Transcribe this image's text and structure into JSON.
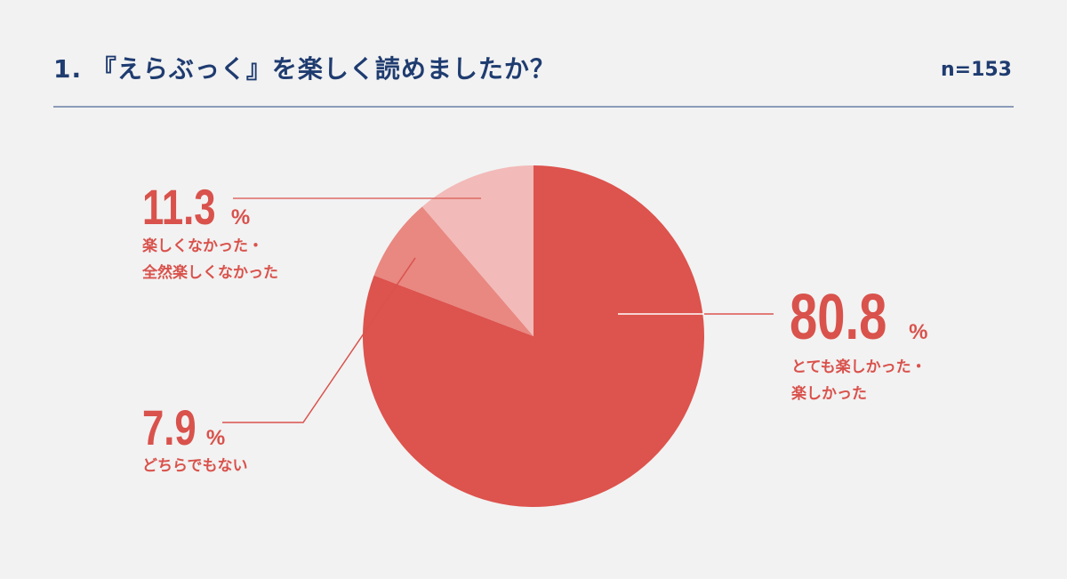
{
  "header": {
    "title": "1. 『えらぶっく』を楽しく読めましたか？",
    "sample_size": "n=153"
  },
  "colors": {
    "accent": "#d9524c",
    "slice_enjoyed": "#dd534d",
    "slice_neutral": "#e98781",
    "slice_not_enjoyed": "#f2bab8",
    "title": "#1f3c70"
  },
  "chart_data": {
    "type": "pie",
    "title": "1. 『えらぶっく』を楽しく読めましたか？",
    "slices": [
      {
        "label": "とても楽しかった・\n楽しかった",
        "value": 80.8,
        "value_text": "80.8",
        "unit": "%"
      },
      {
        "label": "どちらでもない",
        "value": 7.9,
        "value_text": "7.9",
        "unit": "%"
      },
      {
        "label": "楽しくなかった・\n全然楽しくなかった",
        "value": 11.3,
        "value_text": "11.3",
        "unit": "%"
      }
    ],
    "direction": "clockwise",
    "start": "top"
  }
}
